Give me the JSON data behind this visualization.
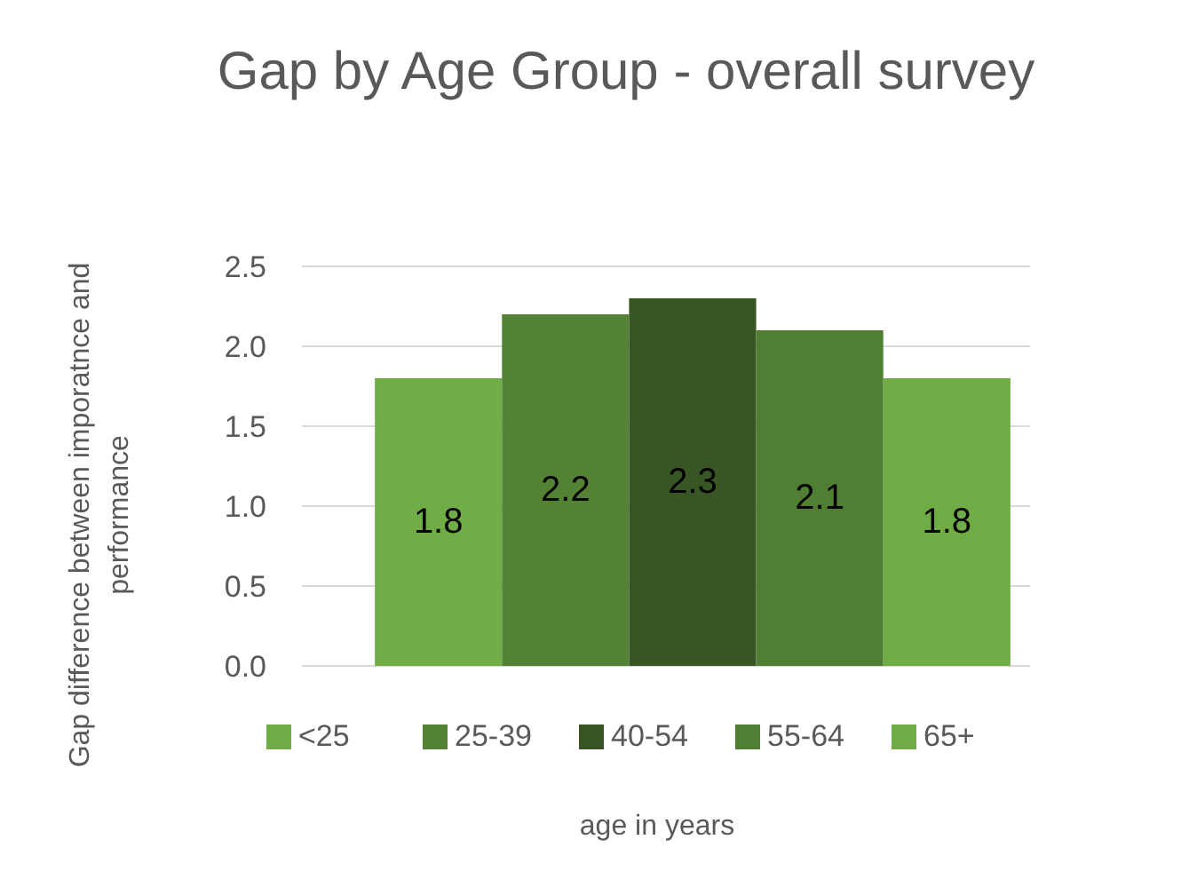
{
  "chart_data": {
    "type": "bar",
    "title": "Gap by Age Group - overall survey",
    "xlabel": "age in years",
    "ylabel": "Gap difference between imporatnce and performance",
    "categories": [
      null
    ],
    "series": [
      {
        "name": "<25",
        "color": "#70ad47",
        "values": [
          1.8
        ]
      },
      {
        "name": "25-39",
        "color": "#548235",
        "values": [
          2.2
        ]
      },
      {
        "name": "40-54",
        "color": "#375623",
        "values": [
          2.3
        ]
      },
      {
        "name": "55-64",
        "color": "#507e32",
        "values": [
          2.1
        ]
      },
      {
        "name": "65+",
        "color": "#6fac46",
        "values": [
          1.8
        ]
      }
    ],
    "ylim": [
      0,
      2.5
    ],
    "yticks": [
      {
        "value": 0,
        "label": "0.0"
      },
      {
        "value": 0.5,
        "label": "0.5"
      },
      {
        "value": 1,
        "label": "1.0"
      },
      {
        "value": 1.5,
        "label": "1.5"
      },
      {
        "value": 2,
        "label": "2.0"
      },
      {
        "value": 2.5,
        "label": "2.5"
      }
    ],
    "grid": "y",
    "legend": "bottom",
    "data_labels": true
  }
}
